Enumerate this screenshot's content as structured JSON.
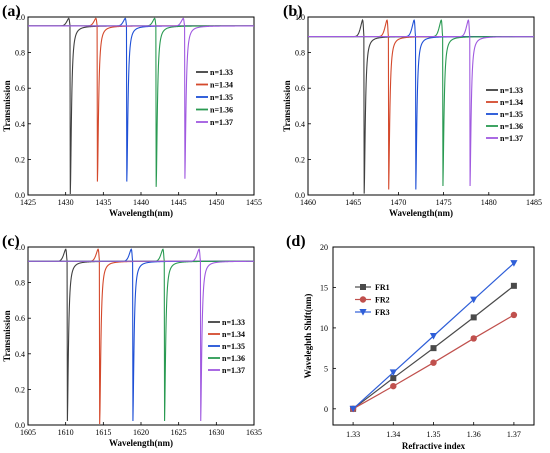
{
  "chart_data": [
    {
      "panel": "(a)",
      "type": "line",
      "xlabel": "Wavelength(nm)",
      "ylabel": "Transmission",
      "xlim": [
        1425,
        1455
      ],
      "ylim": [
        0.0,
        1.0
      ],
      "xticks": [
        1425,
        1430,
        1435,
        1440,
        1445,
        1450,
        1455
      ],
      "yticks": [
        0.0,
        0.2,
        0.4,
        0.6,
        0.8,
        1.0
      ],
      "grid": false,
      "legend": "right",
      "baseline": 0.95,
      "series": [
        {
          "name": "n=1.33",
          "color": "#404040",
          "resonance": 1430.6,
          "min": 0.0
        },
        {
          "name": "n=1.34",
          "color": "#d4492c",
          "resonance": 1434.2,
          "min": 0.07
        },
        {
          "name": "n=1.35",
          "color": "#1f50d6",
          "resonance": 1438.1,
          "min": 0.07
        },
        {
          "name": "n=1.36",
          "color": "#2a9a52",
          "resonance": 1442.0,
          "min": 0.04
        },
        {
          "name": "n=1.37",
          "color": "#a05ae0",
          "resonance": 1445.8,
          "min": 0.07
        }
      ]
    },
    {
      "panel": "(b)",
      "type": "line",
      "xlabel": "Wavelength(nm)",
      "ylabel": "Transmission",
      "xlim": [
        1460,
        1485
      ],
      "ylim": [
        0.0,
        1.0
      ],
      "xticks": [
        1460,
        1465,
        1470,
        1475,
        1480,
        1485
      ],
      "yticks": [
        0.0,
        0.2,
        0.4,
        0.6,
        0.8,
        1.0
      ],
      "grid": false,
      "legend": "right",
      "baseline": 0.89,
      "series": [
        {
          "name": "n=1.33",
          "color": "#404040",
          "resonance": 1466.2,
          "min": 0.0
        },
        {
          "name": "n=1.34",
          "color": "#d4492c",
          "resonance": 1468.9,
          "min": 0.0
        },
        {
          "name": "n=1.35",
          "color": "#1f50d6",
          "resonance": 1471.9,
          "min": 0.0
        },
        {
          "name": "n=1.36",
          "color": "#2a9a52",
          "resonance": 1474.9,
          "min": 0.02
        },
        {
          "name": "n=1.37",
          "color": "#a05ae0",
          "resonance": 1477.9,
          "min": 0.02
        }
      ]
    },
    {
      "panel": "(c)",
      "type": "line",
      "xlabel": "Wavelength(nm)",
      "ylabel": "Transmission",
      "xlim": [
        1605,
        1635
      ],
      "ylim": [
        0.0,
        1.0
      ],
      "xticks": [
        1605,
        1610,
        1615,
        1620,
        1625,
        1630,
        1635
      ],
      "yticks": [
        0.0,
        0.2,
        0.4,
        0.6,
        0.8,
        1.0
      ],
      "grid": false,
      "legend": "right",
      "baseline": 0.92,
      "series": [
        {
          "name": "n=1.33",
          "color": "#404040",
          "resonance": 1610.2,
          "min": 0.0
        },
        {
          "name": "n=1.34",
          "color": "#d4492c",
          "resonance": 1614.5,
          "min": 0.0
        },
        {
          "name": "n=1.35",
          "color": "#1f50d6",
          "resonance": 1618.9,
          "min": 0.0
        },
        {
          "name": "n=1.36",
          "color": "#2a9a52",
          "resonance": 1623.1,
          "min": 0.0
        },
        {
          "name": "n=1.37",
          "color": "#a05ae0",
          "resonance": 1627.9,
          "min": 0.0
        }
      ]
    },
    {
      "panel": "(d)",
      "type": "line",
      "xlabel": "Refractive index",
      "ylabel": "Waveleghth Shift(nm)",
      "xlim": [
        1.325,
        1.375
      ],
      "ylim": [
        -2,
        20
      ],
      "xticks": [
        "1.33",
        "1.34",
        "1.35",
        "1.36",
        "1.37"
      ],
      "yticks": [
        0,
        5,
        10,
        15,
        20
      ],
      "grid": false,
      "legend": "top-left",
      "x": [
        1.33,
        1.34,
        1.35,
        1.36,
        1.37
      ],
      "series": [
        {
          "name": "FR1",
          "color": "#4a4a4a",
          "marker": "square",
          "values": [
            0,
            3.8,
            7.5,
            11.3,
            15.2
          ]
        },
        {
          "name": "FR2",
          "color": "#c0504d",
          "marker": "circle",
          "values": [
            0,
            2.8,
            5.7,
            8.7,
            11.6
          ]
        },
        {
          "name": "FR3",
          "color": "#2f5fd8",
          "marker": "triangle-down",
          "values": [
            0,
            4.5,
            9.0,
            13.5,
            18.0
          ]
        }
      ]
    }
  ]
}
